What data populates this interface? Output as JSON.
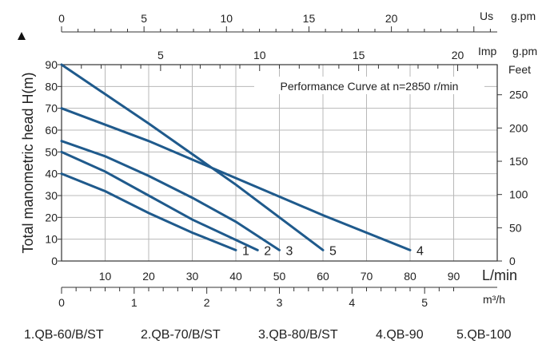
{
  "chart_data": {
    "type": "line",
    "title": "Performance Curve at n=2850 r/min",
    "ylabel": "Total manometric head H(m)",
    "xlabel": "L/min",
    "xlim": [
      0,
      100
    ],
    "ylim": [
      0,
      90
    ],
    "x_ticks": [
      10,
      20,
      30,
      40,
      50,
      60,
      70,
      80,
      90
    ],
    "y_ticks": [
      0,
      10,
      20,
      30,
      40,
      50,
      60,
      70,
      80,
      90
    ],
    "grid": true,
    "line_color": "#1f5a8c",
    "top_axis_us": {
      "unit_code": "Us",
      "unit": "g.pm",
      "ticks": [
        0,
        5,
        10,
        15,
        20
      ],
      "gpm_per_lpm": 0.26417
    },
    "top_axis_imp": {
      "unit_code": "Imp",
      "unit": "g.pm",
      "ticks": [
        5,
        10,
        15,
        20
      ],
      "gpm_per_lpm": 0.21997
    },
    "right_axis_feet": {
      "unit": "Feet",
      "ticks": [
        0,
        50,
        100,
        150,
        200,
        250
      ],
      "ft_per_m": 3.2808
    },
    "bottom_axis_m3h": {
      "unit": "m³/h",
      "ticks": [
        0,
        1,
        2,
        3,
        4,
        5
      ],
      "m3h_per_lpm": 0.06
    },
    "series": [
      {
        "label": "1",
        "x": [
          0,
          10,
          20,
          30,
          40
        ],
        "y": [
          40,
          32,
          22,
          13,
          5
        ]
      },
      {
        "label": "2",
        "x": [
          0,
          10,
          20,
          30,
          45
        ],
        "y": [
          50,
          41,
          30,
          19,
          5
        ]
      },
      {
        "label": "3",
        "x": [
          0,
          10,
          20,
          30,
          40,
          50
        ],
        "y": [
          55,
          48,
          39,
          29,
          18,
          5
        ]
      },
      {
        "label": "4",
        "x": [
          0,
          20,
          40,
          60,
          80
        ],
        "y": [
          70,
          55,
          38,
          21,
          5
        ]
      },
      {
        "label": "5",
        "x": [
          0,
          20,
          40,
          60
        ],
        "y": [
          90,
          63,
          35,
          5
        ]
      }
    ]
  },
  "legend": [
    {
      "number": "1.",
      "model": "QB-60/B/ST"
    },
    {
      "number": "2.",
      "model": "QB-70/B/ST"
    },
    {
      "number": "3.",
      "model": "QB-80/B/ST"
    },
    {
      "number": "4.",
      "model": "QB-90"
    },
    {
      "number": "5.",
      "model": "QB-100"
    }
  ]
}
